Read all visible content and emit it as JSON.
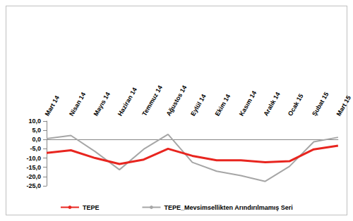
{
  "chart_data": {
    "type": "line",
    "categories": [
      "Mart 14",
      "Nisan 14",
      "Mayıs 14",
      "Haziran 14",
      "Temmuz 14",
      "Ağustos 14",
      "Eylül 14",
      "Ekim 14",
      "Kasım 14",
      "Aralık 14",
      "Ocak 15",
      "Şubat 15",
      "Mart 15"
    ],
    "series": [
      {
        "name": "TEPE",
        "color": "#e8251f",
        "marker": "none",
        "line_style": "solid",
        "values": [
          -7.2,
          -5.8,
          -10.0,
          -13.2,
          -10.8,
          -5.0,
          -8.8,
          -11.2,
          -11.2,
          -12.3,
          -11.7,
          -5.3,
          -3.3
        ]
      },
      {
        "name": "TEPE_Mevsimsellikten Arındırılmamış Seri",
        "color": "#a6a6a6",
        "marker": "none",
        "line_style": "solid",
        "values": [
          0.5,
          2.2,
          -6.5,
          -16.3,
          -5.2,
          2.8,
          -12.3,
          -17.1,
          -19.5,
          -22.6,
          -14.5,
          -1.2,
          1.2
        ]
      }
    ],
    "ylim": [
      -25,
      10
    ],
    "yticks": [
      {
        "value": -25,
        "label": "-25,0"
      },
      {
        "value": -20,
        "label": "-20,0"
      },
      {
        "value": -15,
        "label": "-15,0"
      },
      {
        "value": -10,
        "label": "-10,0"
      },
      {
        "value": -5,
        "label": "-5,0"
      },
      {
        "value": 0,
        "label": "0,0"
      },
      {
        "value": 5,
        "label": "5,0"
      },
      {
        "value": 10,
        "label": "10,0"
      }
    ],
    "grid": false,
    "legend": "bottom"
  }
}
